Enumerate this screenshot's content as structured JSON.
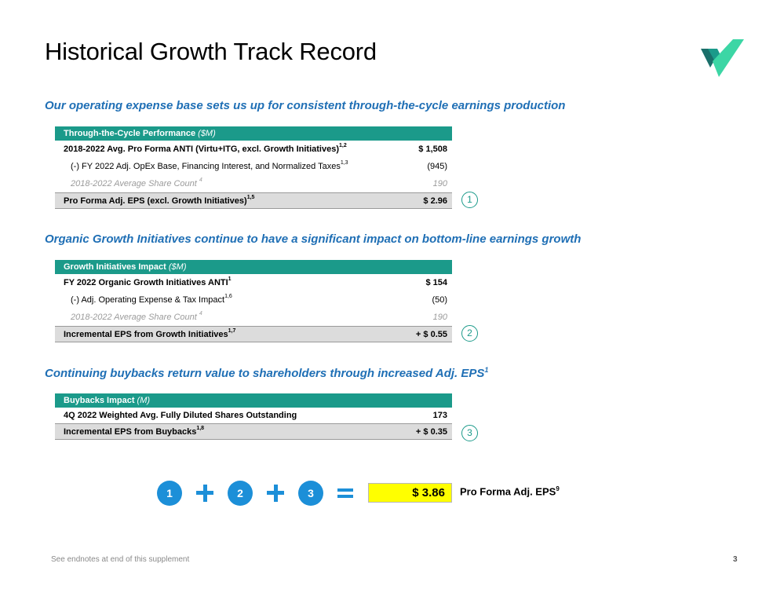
{
  "title": "Historical Growth Track Record",
  "colors": {
    "accent_teal": "#1b9a8a",
    "accent_blue": "#1c8fd8",
    "subhead_blue": "#1f6fb5",
    "highlight": "#ffff00"
  },
  "section1": {
    "subhead": "Our operating expense base sets us up for consistent through-the-cycle earnings production",
    "header_bold": "Through-the-Cycle Performance",
    "header_unit": "($M)",
    "rows": [
      {
        "label": "2018-2022 Avg. Pro Forma ANTI (Virtu+ITG, excl. Growth Initiatives)",
        "note": "1,2",
        "value": "$ 1,508"
      },
      {
        "label": "(-) FY 2022 Adj. OpEx Base, Financing Interest, and Normalized Taxes",
        "note": "1,3",
        "value": "(945)"
      },
      {
        "label": "2018-2022 Average Share Count",
        "note": "4",
        "value": "190"
      }
    ],
    "total": {
      "label": "Pro Forma Adj. EPS (excl. Growth Initiatives)",
      "note": "1,5",
      "value": "$ 2.96"
    },
    "marker": "1"
  },
  "section2": {
    "subhead": "Organic Growth Initiatives continue to have a significant impact on bottom-line earnings growth",
    "header_bold": "Growth Initiatives Impact",
    "header_unit": "($M)",
    "rows": [
      {
        "label": "FY 2022 Organic Growth Initiatives ANTI",
        "note": "1",
        "value": "$ 154"
      },
      {
        "label": "(-) Adj. Operating Expense & Tax Impact",
        "note": "1,6",
        "value": "(50)"
      },
      {
        "label": "2018-2022 Average Share Count",
        "note": "4",
        "value": "190"
      }
    ],
    "total": {
      "label": "Incremental EPS from Growth Initiatives",
      "note": "1,7",
      "value": "+ $ 0.55"
    },
    "marker": "2"
  },
  "section3": {
    "subhead": "Continuing buybacks return value to shareholders through increased Adj. EPS",
    "subhead_note": "1",
    "header_bold": "Buybacks Impact",
    "header_unit": "(M)",
    "rows": [
      {
        "label": "4Q 2022 Weighted Avg. Fully Diluted Shares Outstanding",
        "note": "",
        "value": "173"
      }
    ],
    "total": {
      "label": "Incremental EPS from Buybacks",
      "note": "1,8",
      "value": "+ $ 0.35"
    },
    "marker": "3"
  },
  "equation": {
    "steps": [
      "1",
      "2",
      "3"
    ],
    "result": "$ 3.86",
    "result_label": "Pro Forma Adj. EPS",
    "result_note": "9"
  },
  "footer": {
    "note": "See endnotes at end of this supplement",
    "page": "3"
  },
  "icons": {
    "logo": "virtu-logo-icon",
    "plus": "plus-icon",
    "equals": "equals-icon"
  }
}
